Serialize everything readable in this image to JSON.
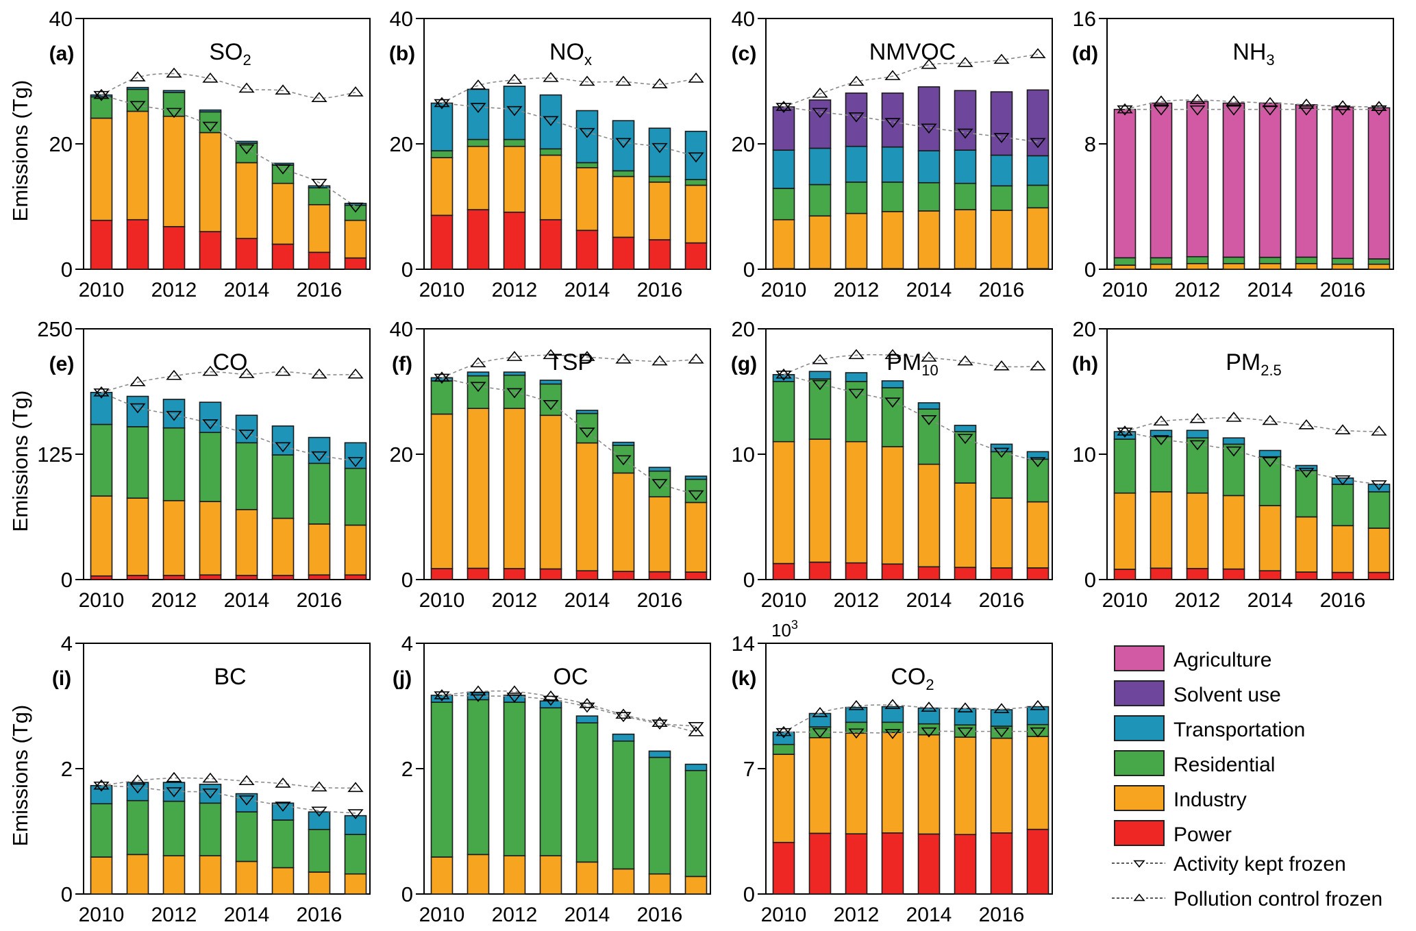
{
  "figure": {
    "ylabel": "Emissions (Tg)",
    "legend": {
      "sectors": [
        {
          "key": "agriculture",
          "label": "Agriculture",
          "color": "#d25aa4"
        },
        {
          "key": "solvent",
          "label": "Solvent use",
          "color": "#6e479c"
        },
        {
          "key": "transportation",
          "label": "Transportation",
          "color": "#1e95b8"
        },
        {
          "key": "residential",
          "label": "Residential",
          "color": "#47a84a"
        },
        {
          "key": "industry",
          "label": "Industry",
          "color": "#f7a520"
        },
        {
          "key": "power",
          "label": "Power",
          "color": "#ee2725"
        }
      ],
      "lines": [
        {
          "key": "activity_frozen",
          "label": "Activity kept frozen",
          "marker": "triangle-down"
        },
        {
          "key": "control_frozen",
          "label": "Pollution control frozen",
          "marker": "triangle-up"
        }
      ]
    }
  },
  "chart_data": [
    {
      "type": "bar",
      "stacked": true,
      "panel": "(a)",
      "title": "SO",
      "title_sub": "2",
      "xlabel": "",
      "ylabel": "Emissions (Tg)",
      "ylim": [
        0,
        40
      ],
      "yticks": [
        0,
        20,
        40
      ],
      "x": [
        2010,
        2011,
        2012,
        2013,
        2014,
        2015,
        2016,
        2017
      ],
      "xticks": [
        2010,
        2012,
        2014,
        2016
      ],
      "series": [
        {
          "name": "Power",
          "values": [
            7.8,
            7.9,
            6.8,
            6.0,
            4.9,
            4.0,
            2.7,
            1.8
          ]
        },
        {
          "name": "Industry",
          "values": [
            16.3,
            17.3,
            17.6,
            15.8,
            12.1,
            9.7,
            7.6,
            6.0
          ]
        },
        {
          "name": "Residential",
          "values": [
            3.4,
            3.5,
            3.8,
            3.3,
            3.1,
            2.9,
            2.7,
            2.4
          ]
        },
        {
          "name": "Transportation",
          "values": [
            0.3,
            0.3,
            0.3,
            0.3,
            0.3,
            0.3,
            0.3,
            0.3
          ]
        }
      ],
      "activity_frozen": [
        27.8,
        26.2,
        25.1,
        22.9,
        19.3,
        16.1,
        13.8,
        10.0
      ],
      "control_frozen": [
        27.8,
        30.6,
        31.2,
        30.4,
        28.8,
        28.5,
        27.3,
        28.2
      ],
      "show_ylabel": true
    },
    {
      "type": "bar",
      "stacked": true,
      "panel": "(b)",
      "title": "NO",
      "title_sub": "x",
      "xlabel": "",
      "ylabel": "",
      "ylim": [
        0,
        40
      ],
      "yticks": [
        0,
        20,
        40
      ],
      "x": [
        2010,
        2011,
        2012,
        2013,
        2014,
        2015,
        2016,
        2017
      ],
      "xticks": [
        2010,
        2012,
        2014,
        2016
      ],
      "series": [
        {
          "name": "Power",
          "values": [
            8.6,
            9.5,
            9.1,
            7.9,
            6.2,
            5.1,
            4.7,
            4.2
          ]
        },
        {
          "name": "Industry",
          "values": [
            9.2,
            10.1,
            10.5,
            10.3,
            10.0,
            9.7,
            9.2,
            9.2
          ]
        },
        {
          "name": "Residential",
          "values": [
            1.1,
            1.1,
            1.1,
            1.0,
            0.8,
            0.9,
            0.9,
            0.9
          ]
        },
        {
          "name": "Transportation",
          "values": [
            7.6,
            8.0,
            8.5,
            8.6,
            8.3,
            8.0,
            7.7,
            7.7
          ]
        }
      ],
      "activity_frozen": [
        26.5,
        25.9,
        25.4,
        23.8,
        21.9,
        20.3,
        19.5,
        18.0
      ],
      "control_frozen": [
        26.5,
        29.3,
        30.2,
        30.5,
        29.9,
        29.9,
        29.5,
        30.4
      ],
      "show_ylabel": false
    },
    {
      "type": "bar",
      "stacked": true,
      "panel": "(c)",
      "title": "NMVOC",
      "title_sub": "",
      "xlabel": "",
      "ylabel": "",
      "ylim": [
        0,
        40
      ],
      "yticks": [
        0,
        20,
        40
      ],
      "x": [
        2010,
        2011,
        2012,
        2013,
        2014,
        2015,
        2016,
        2017
      ],
      "xticks": [
        2010,
        2012,
        2014,
        2016
      ],
      "series": [
        {
          "name": "Power",
          "values": [
            0.1,
            0.1,
            0.1,
            0.1,
            0.1,
            0.1,
            0.1,
            0.1
          ]
        },
        {
          "name": "Industry",
          "values": [
            7.8,
            8.4,
            8.8,
            9.1,
            9.2,
            9.4,
            9.3,
            9.7
          ]
        },
        {
          "name": "Residential",
          "values": [
            5.0,
            5.0,
            5.0,
            4.7,
            4.5,
            4.2,
            3.9,
            3.6
          ]
        },
        {
          "name": "Transportation",
          "values": [
            6.1,
            5.8,
            5.7,
            5.6,
            5.1,
            5.3,
            4.9,
            4.7
          ]
        },
        {
          "name": "Solvent use",
          "values": [
            6.9,
            7.7,
            8.5,
            8.6,
            10.2,
            9.5,
            10.1,
            10.5
          ]
        }
      ],
      "activity_frozen": [
        25.9,
        25.1,
        24.4,
        23.5,
        22.6,
        21.8,
        21.1,
        20.3
      ],
      "control_frozen": [
        25.9,
        28.0,
        29.9,
        30.8,
        32.6,
        32.9,
        33.4,
        34.3
      ],
      "show_ylabel": false
    },
    {
      "type": "bar",
      "stacked": true,
      "panel": "(d)",
      "title": "NH",
      "title_sub": "3",
      "xlabel": "",
      "ylabel": "",
      "ylim": [
        0,
        16
      ],
      "yticks": [
        0,
        8,
        16
      ],
      "x": [
        2010,
        2011,
        2012,
        2013,
        2014,
        2015,
        2016,
        2017
      ],
      "xticks": [
        2010,
        2012,
        2014,
        2016
      ],
      "series": [
        {
          "name": "Industry",
          "values": [
            0.26,
            0.32,
            0.36,
            0.36,
            0.36,
            0.36,
            0.32,
            0.32
          ]
        },
        {
          "name": "Residential",
          "values": [
            0.47,
            0.41,
            0.44,
            0.41,
            0.4,
            0.41,
            0.37,
            0.34
          ]
        },
        {
          "name": "Agriculture",
          "values": [
            9.47,
            9.87,
            9.9,
            9.83,
            9.84,
            9.73,
            9.66,
            9.64
          ]
        }
      ],
      "activity_frozen": [
        10.2,
        10.2,
        10.2,
        10.2,
        10.2,
        10.2,
        10.2,
        10.2
      ],
      "control_frozen": [
        10.2,
        10.7,
        10.8,
        10.7,
        10.6,
        10.5,
        10.4,
        10.35
      ],
      "show_ylabel": false
    },
    {
      "type": "bar",
      "stacked": true,
      "panel": "(e)",
      "title": "CO",
      "title_sub": "",
      "xlabel": "",
      "ylabel": "Emissions (Tg)",
      "ylim": [
        0,
        250
      ],
      "yticks": [
        0,
        125,
        250
      ],
      "x": [
        2010,
        2011,
        2012,
        2013,
        2014,
        2015,
        2016,
        2017
      ],
      "xticks": [
        2010,
        2012,
        2014,
        2016
      ],
      "series": [
        {
          "name": "Power",
          "values": [
            3.6,
            4.1,
            4.1,
            4.6,
            4.1,
            4.1,
            4.6,
            4.6
          ]
        },
        {
          "name": "Industry",
          "values": [
            79.7,
            77.1,
            74.6,
            73.2,
            65.7,
            57.0,
            50.8,
            49.7
          ]
        },
        {
          "name": "Residential",
          "values": [
            71.4,
            71.2,
            72.5,
            68.9,
            66.6,
            63.2,
            60.5,
            56.6
          ]
        },
        {
          "name": "Transportation",
          "values": [
            31.9,
            30.3,
            28.5,
            30.1,
            27.4,
            28.8,
            25.8,
            25.5
          ]
        }
      ],
      "activity_frozen": [
        186.6,
        171.8,
        164.2,
        155.8,
        145.5,
        133.0,
        123.9,
        118.2
      ],
      "control_frozen": [
        186.6,
        196.8,
        203.0,
        207.1,
        204.8,
        207.1,
        204.4,
        204.4
      ],
      "show_ylabel": true
    },
    {
      "type": "bar",
      "stacked": true,
      "panel": "(f)",
      "title": "TSP",
      "title_sub": "",
      "xlabel": "",
      "ylabel": "",
      "ylim": [
        0,
        40
      ],
      "yticks": [
        0,
        20,
        40
      ],
      "x": [
        2010,
        2011,
        2012,
        2013,
        2014,
        2015,
        2016,
        2017
      ],
      "xticks": [
        2010,
        2012,
        2014,
        2016
      ],
      "series": [
        {
          "name": "Power",
          "values": [
            1.75,
            1.8,
            1.75,
            1.7,
            1.4,
            1.3,
            1.25,
            1.2
          ]
        },
        {
          "name": "Industry",
          "values": [
            24.65,
            25.5,
            25.55,
            24.5,
            20.4,
            15.7,
            11.95,
            11.1
          ]
        },
        {
          "name": "Residential",
          "values": [
            5.3,
            5.2,
            5.3,
            5.0,
            4.7,
            4.4,
            4.1,
            3.7
          ]
        },
        {
          "name": "Transportation",
          "values": [
            0.5,
            0.6,
            0.5,
            0.6,
            0.5,
            0.5,
            0.6,
            0.5
          ]
        }
      ],
      "activity_frozen": [
        32.2,
        30.9,
        29.9,
        28.0,
        23.6,
        19.2,
        15.4,
        13.6
      ],
      "control_frozen": [
        32.2,
        34.5,
        35.5,
        35.8,
        35.5,
        35.1,
        34.8,
        35.1
      ],
      "show_ylabel": false
    },
    {
      "type": "bar",
      "stacked": true,
      "panel": "(g)",
      "title": "PM",
      "title_sub": "10",
      "xlabel": "",
      "ylabel": "",
      "ylim": [
        0,
        20
      ],
      "yticks": [
        0,
        10,
        20
      ],
      "x": [
        2010,
        2011,
        2012,
        2013,
        2014,
        2015,
        2016,
        2017
      ],
      "xticks": [
        2010,
        2012,
        2014,
        2016
      ],
      "series": [
        {
          "name": "Power",
          "values": [
            1.28,
            1.39,
            1.33,
            1.24,
            1.02,
            0.97,
            0.93,
            0.93
          ]
        },
        {
          "name": "Industry",
          "values": [
            9.72,
            9.81,
            9.67,
            9.36,
            8.18,
            6.73,
            5.57,
            5.27
          ]
        },
        {
          "name": "Residential",
          "values": [
            4.8,
            4.8,
            4.8,
            4.7,
            4.4,
            4.1,
            3.7,
            3.4
          ]
        },
        {
          "name": "Transportation",
          "values": [
            0.55,
            0.6,
            0.7,
            0.55,
            0.5,
            0.5,
            0.6,
            0.6
          ]
        }
      ],
      "activity_frozen": [
        16.35,
        15.6,
        14.9,
        14.2,
        12.8,
        11.3,
        10.2,
        9.45
      ],
      "control_frozen": [
        16.35,
        17.5,
        17.9,
        17.9,
        17.7,
        17.4,
        17.0,
        17.0
      ],
      "show_ylabel": false
    },
    {
      "type": "bar",
      "stacked": true,
      "panel": "(h)",
      "title": "PM",
      "title_sub": "2.5",
      "xlabel": "",
      "ylabel": "",
      "ylim": [
        0,
        20
      ],
      "yticks": [
        0,
        10,
        20
      ],
      "x": [
        2010,
        2011,
        2012,
        2013,
        2014,
        2015,
        2016,
        2017
      ],
      "xticks": [
        2010,
        2012,
        2014,
        2016
      ],
      "series": [
        {
          "name": "Power",
          "values": [
            0.82,
            0.91,
            0.88,
            0.84,
            0.7,
            0.6,
            0.57,
            0.57
          ]
        },
        {
          "name": "Industry",
          "values": [
            6.08,
            6.09,
            6.02,
            5.86,
            5.2,
            4.4,
            3.73,
            3.53
          ]
        },
        {
          "name": "Residential",
          "values": [
            4.3,
            4.4,
            4.4,
            4.1,
            3.9,
            3.7,
            3.3,
            2.9
          ]
        },
        {
          "name": "Transportation",
          "values": [
            0.6,
            0.5,
            0.6,
            0.5,
            0.5,
            0.4,
            0.5,
            0.6
          ]
        }
      ],
      "activity_frozen": [
        11.8,
        11.2,
        10.8,
        10.3,
        9.45,
        8.6,
        8.0,
        7.6
      ],
      "control_frozen": [
        11.8,
        12.6,
        12.8,
        12.9,
        12.65,
        12.3,
        11.9,
        11.8
      ],
      "show_ylabel": false
    },
    {
      "type": "bar",
      "stacked": true,
      "panel": "(i)",
      "title": "BC",
      "title_sub": "",
      "xlabel": "",
      "ylabel": "Emissions (Tg)",
      "ylim": [
        0,
        4
      ],
      "yticks": [
        0,
        2,
        4
      ],
      "x": [
        2010,
        2011,
        2012,
        2013,
        2014,
        2015,
        2016,
        2017
      ],
      "xticks": [
        2010,
        2012,
        2014,
        2016
      ],
      "series": [
        {
          "name": "Industry",
          "values": [
            0.59,
            0.63,
            0.61,
            0.61,
            0.52,
            0.42,
            0.35,
            0.32
          ]
        },
        {
          "name": "Residential",
          "values": [
            0.85,
            0.86,
            0.87,
            0.84,
            0.79,
            0.76,
            0.68,
            0.63
          ]
        },
        {
          "name": "Transportation",
          "values": [
            0.29,
            0.29,
            0.3,
            0.3,
            0.29,
            0.27,
            0.28,
            0.3
          ]
        }
      ],
      "activity_frozen": [
        1.73,
        1.7,
        1.64,
        1.62,
        1.51,
        1.41,
        1.33,
        1.29
      ],
      "control_frozen": [
        1.73,
        1.81,
        1.85,
        1.84,
        1.8,
        1.76,
        1.7,
        1.69
      ],
      "show_ylabel": true
    },
    {
      "type": "bar",
      "stacked": true,
      "panel": "(j)",
      "title": "OC",
      "title_sub": "",
      "xlabel": "",
      "ylabel": "",
      "ylim": [
        0,
        4
      ],
      "yticks": [
        0,
        2,
        4
      ],
      "x": [
        2010,
        2011,
        2012,
        2013,
        2014,
        2015,
        2016,
        2017
      ],
      "xticks": [
        2010,
        2012,
        2014,
        2016
      ],
      "series": [
        {
          "name": "Industry",
          "values": [
            0.59,
            0.63,
            0.61,
            0.61,
            0.51,
            0.4,
            0.32,
            0.28
          ]
        },
        {
          "name": "Residential",
          "values": [
            2.47,
            2.47,
            2.45,
            2.36,
            2.22,
            2.04,
            1.86,
            1.69
          ]
        },
        {
          "name": "Transportation",
          "values": [
            0.11,
            0.12,
            0.11,
            0.11,
            0.11,
            0.11,
            0.1,
            0.1
          ]
        }
      ],
      "activity_frozen": [
        3.17,
        3.16,
        3.15,
        3.1,
        2.99,
        2.84,
        2.72,
        2.68
      ],
      "control_frozen": [
        3.17,
        3.23,
        3.23,
        3.15,
        3.03,
        2.86,
        2.73,
        2.58
      ],
      "show_ylabel": false
    },
    {
      "type": "bar",
      "stacked": true,
      "panel": "(k)",
      "title": "CO",
      "title_sub": "2",
      "xlabel": "",
      "ylabel": "",
      "ylim": [
        0,
        14
      ],
      "yticks": [
        0,
        7,
        14
      ],
      "y_scale_note": "10",
      "y_scale_exp": "3",
      "x": [
        2010,
        2011,
        2012,
        2013,
        2014,
        2015,
        2016,
        2017
      ],
      "xticks": [
        2010,
        2012,
        2014,
        2016
      ],
      "series": [
        {
          "name": "Power",
          "values": [
            2.88,
            3.39,
            3.36,
            3.41,
            3.35,
            3.32,
            3.41,
            3.61
          ]
        },
        {
          "name": "Industry",
          "values": [
            4.92,
            5.34,
            5.62,
            5.61,
            5.54,
            5.44,
            5.29,
            5.19
          ]
        },
        {
          "name": "Residential",
          "values": [
            0.55,
            0.6,
            0.61,
            0.57,
            0.61,
            0.68,
            0.67,
            0.66
          ]
        },
        {
          "name": "Transportation",
          "values": [
            0.69,
            0.75,
            0.83,
            0.87,
            0.88,
            0.92,
            0.92,
            1.0
          ]
        }
      ],
      "activity_frozen": [
        9.04,
        9.04,
        9.02,
        8.99,
        9.08,
        9.08,
        9.08,
        9.08
      ],
      "control_frozen": [
        9.04,
        10.1,
        10.49,
        10.55,
        10.4,
        10.36,
        10.32,
        10.49
      ],
      "show_ylabel": false
    }
  ]
}
